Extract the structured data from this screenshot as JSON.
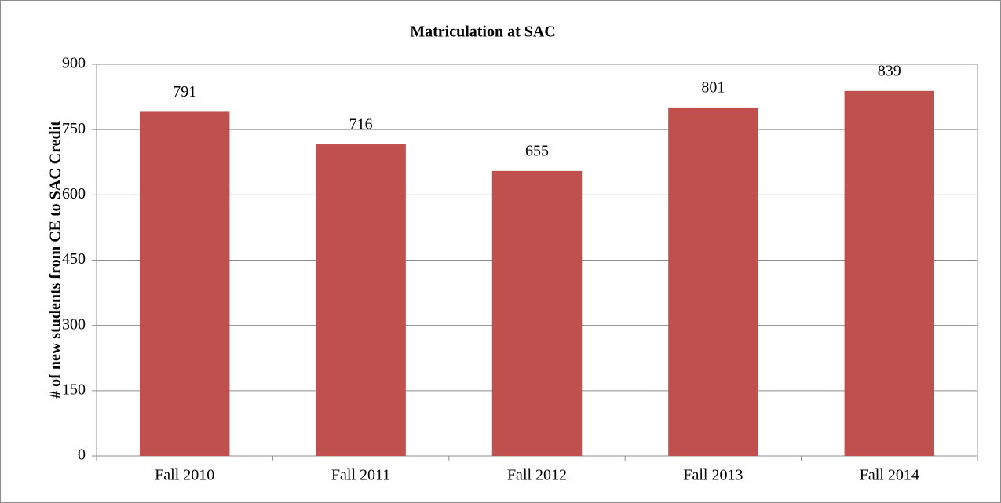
{
  "chart_data": {
    "type": "bar",
    "title": "Matriculation at SAC",
    "ylabel": "# of new students from CE to SAC Credit",
    "categories": [
      "Fall 2010",
      "Fall 2011",
      "Fall 2012",
      "Fall 2013",
      "Fall 2014"
    ],
    "values": [
      791,
      716,
      655,
      801,
      839
    ],
    "color": "#c0504d",
    "ylim": [
      0,
      900
    ],
    "yticks": [
      0,
      150,
      300,
      450,
      600,
      750,
      900
    ],
    "grid": true
  }
}
